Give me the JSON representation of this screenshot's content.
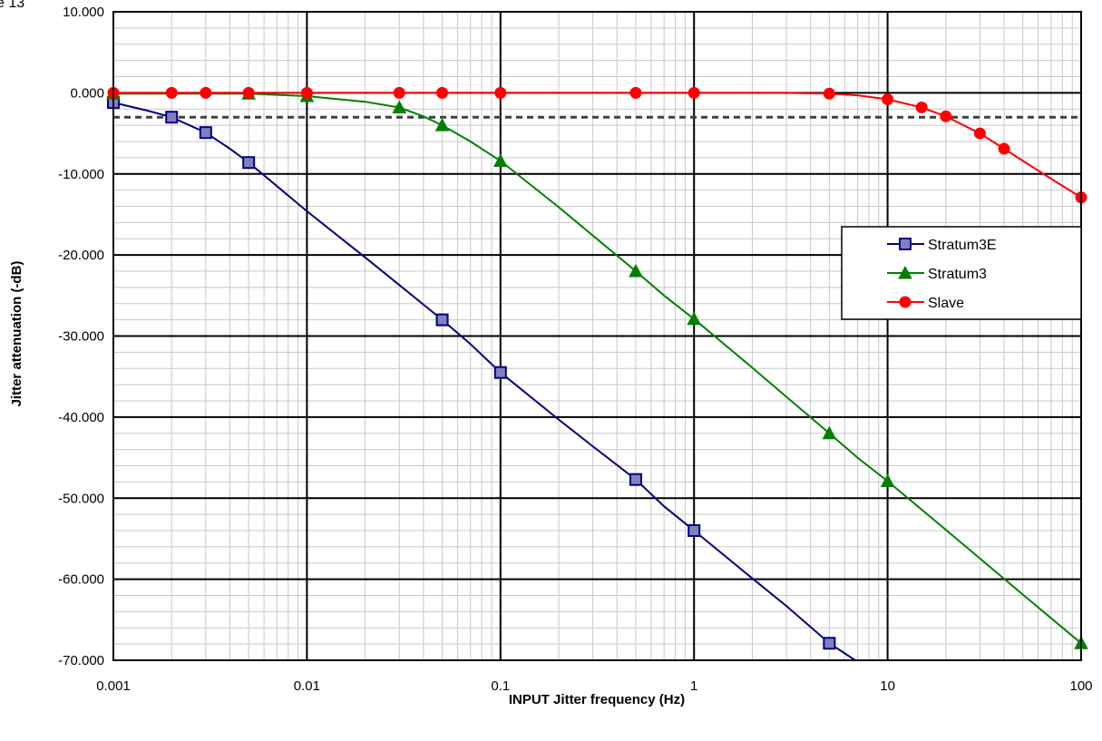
{
  "corner_text": "e 13",
  "chart_data": {
    "type": "line",
    "title": "",
    "xlabel": "INPUT Jitter frequency (Hz)",
    "ylabel": "Jitter attenuation (-dB)",
    "x_scale": "log",
    "xlim": [
      0.001,
      100
    ],
    "ylim": [
      -70,
      10
    ],
    "grid": true,
    "legend_position": "right",
    "x_tick_labels": [
      "0.001",
      "0.01",
      "0.1",
      "1",
      "10",
      "100"
    ],
    "x_ticks": [
      0.001,
      0.01,
      0.1,
      1,
      10,
      100
    ],
    "y_tick_labels": [
      "10.000",
      "0.000",
      "-10.000",
      "-20.000",
      "-30.000",
      "-40.000",
      "-50.000",
      "-60.000",
      "-70.000"
    ],
    "y_ticks": [
      10,
      0,
      -10,
      -20,
      -30,
      -40,
      -50,
      -60,
      -70
    ],
    "reference_line": {
      "y": -3,
      "style": "dashed",
      "color": "#404040"
    },
    "series": [
      {
        "name": "Stratum3E",
        "color": "#000080",
        "marker": "square",
        "x": [
          0.001,
          0.002,
          0.003,
          0.005,
          0.05,
          0.1,
          0.5,
          1,
          5
        ],
        "y": [
          -1.2,
          -3.0,
          -4.9,
          -8.6,
          -28.0,
          -34.5,
          -47.7,
          -54.0,
          -67.9
        ],
        "line_x": [
          0.001,
          0.0015,
          0.002,
          0.003,
          0.004,
          0.005,
          0.007,
          0.01,
          0.02,
          0.03,
          0.05,
          0.07,
          0.1,
          0.2,
          0.3,
          0.5,
          0.7,
          1,
          2,
          3,
          5,
          6.8
        ],
        "line_y": [
          -1.2,
          -2.2,
          -3.0,
          -4.9,
          -6.9,
          -8.6,
          -11.5,
          -14.6,
          -20.3,
          -23.7,
          -28.0,
          -31.0,
          -34.5,
          -40.3,
          -43.6,
          -47.7,
          -51.0,
          -54.0,
          -59.9,
          -63.3,
          -67.9,
          -70.0
        ]
      },
      {
        "name": "Stratum3",
        "color": "#008000",
        "marker": "triangle",
        "x": [
          0.001,
          0.005,
          0.01,
          0.03,
          0.05,
          0.1,
          0.5,
          1,
          5,
          10,
          100
        ],
        "y": [
          -0.1,
          -0.1,
          -0.4,
          -1.8,
          -4.0,
          -8.4,
          -22.0,
          -27.9,
          -42.0,
          -47.9,
          -67.9
        ],
        "line_x": [
          0.001,
          0.005,
          0.01,
          0.02,
          0.03,
          0.04,
          0.05,
          0.07,
          0.1,
          0.2,
          0.3,
          0.5,
          0.7,
          1,
          2,
          3,
          5,
          7,
          10,
          20,
          50,
          100
        ],
        "line_y": [
          -0.1,
          -0.1,
          -0.4,
          -1.1,
          -1.8,
          -2.9,
          -4.0,
          -6.0,
          -8.4,
          -14.1,
          -17.6,
          -22.0,
          -25.0,
          -27.9,
          -33.9,
          -37.5,
          -42.0,
          -45.0,
          -47.9,
          -53.9,
          -61.9,
          -67.9
        ]
      },
      {
        "name": "Slave",
        "color": "#ff0000",
        "marker": "circle",
        "x": [
          0.001,
          0.002,
          0.003,
          0.005,
          0.01,
          0.03,
          0.05,
          0.1,
          0.5,
          1,
          5,
          10,
          15,
          20,
          30,
          40,
          100
        ],
        "y": [
          0.0,
          0.0,
          0.0,
          0.0,
          0.0,
          0.0,
          0.0,
          0.0,
          0.0,
          0.0,
          -0.1,
          -0.8,
          -1.8,
          -2.9,
          -5.0,
          -6.9,
          -12.9
        ],
        "line_x": [
          0.001,
          0.002,
          0.003,
          0.005,
          0.01,
          0.03,
          0.05,
          0.1,
          0.5,
          1,
          3,
          5,
          7,
          10,
          15,
          20,
          30,
          40,
          50,
          70,
          100
        ],
        "line_y": [
          0.0,
          0.0,
          0.0,
          0.0,
          0.0,
          0.0,
          0.0,
          0.0,
          0.0,
          0.0,
          0.0,
          -0.1,
          -0.3,
          -0.8,
          -1.8,
          -2.9,
          -5.0,
          -6.9,
          -8.4,
          -10.6,
          -12.9
        ]
      }
    ]
  }
}
